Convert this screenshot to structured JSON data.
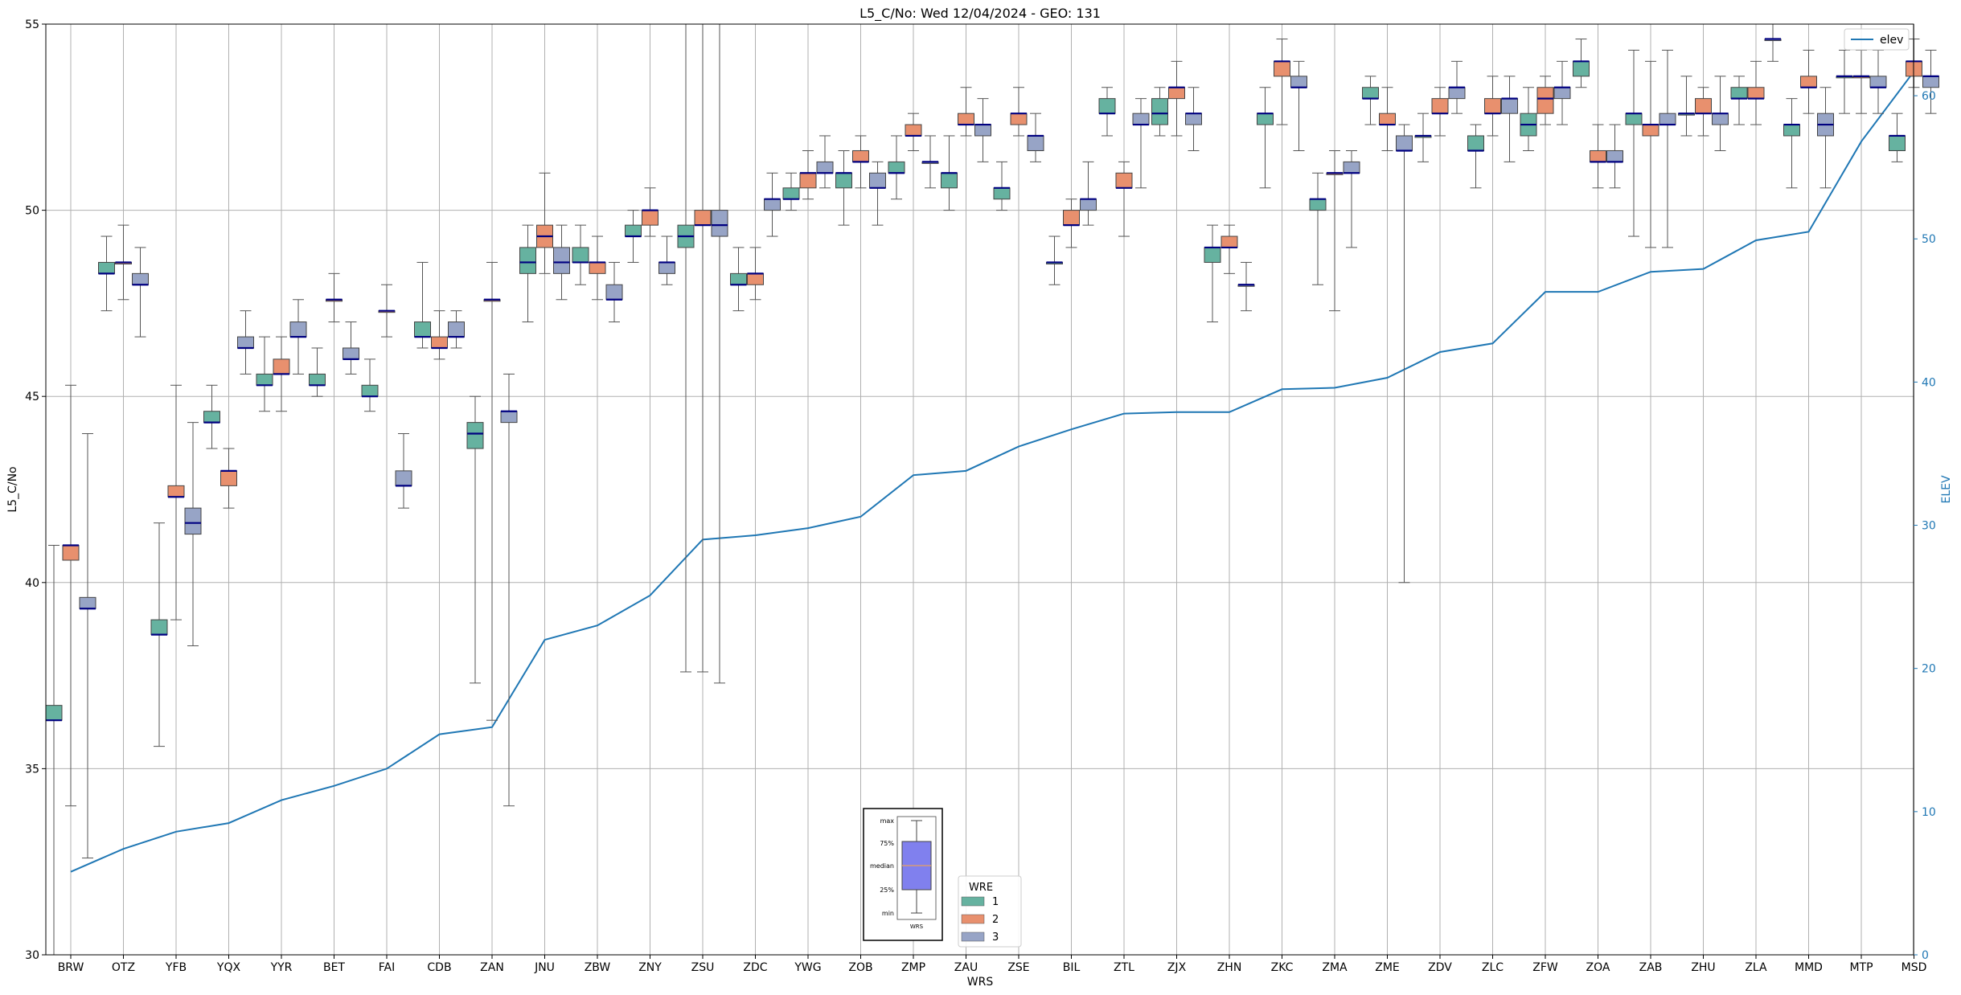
{
  "chart_data": {
    "type": "box",
    "title": "L5_C/No: Wed 12/04/2024 - GEO: 131",
    "xlabel": "WRS",
    "ylabel": "L5_C/No",
    "ylabel2": "ELEV",
    "ylim": [
      30,
      55
    ],
    "y2lim": [
      0,
      65
    ],
    "yticks": [
      "30",
      "35",
      "40",
      "45",
      "50",
      "55"
    ],
    "y2ticks": [
      "0",
      "10",
      "20",
      "30",
      "40",
      "50",
      "60"
    ],
    "grid": true,
    "categories": [
      "BRW",
      "OTZ",
      "YFB",
      "YQX",
      "YYR",
      "BET",
      "FAI",
      "CDB",
      "ZAN",
      "JNU",
      "ZBW",
      "ZNY",
      "ZSU",
      "ZDC",
      "YWG",
      "ZOB",
      "ZMP",
      "ZAU",
      "ZSE",
      "BIL",
      "ZTL",
      "ZJX",
      "ZHN",
      "ZKC",
      "ZMA",
      "ZME",
      "ZDV",
      "ZLC",
      "ZFW",
      "ZOA",
      "ZAB",
      "ZHU",
      "ZLA",
      "MMD",
      "MTP",
      "MSD"
    ],
    "elevation": [
      5.8,
      7.4,
      8.6,
      9.2,
      10.8,
      11.8,
      13.0,
      15.4,
      15.9,
      22.0,
      23.0,
      25.1,
      29.0,
      29.3,
      29.8,
      30.6,
      33.5,
      33.8,
      35.5,
      36.7,
      37.8,
      37.9,
      37.9,
      39.5,
      39.6,
      40.3,
      42.1,
      42.7,
      46.3,
      46.3,
      47.7,
      47.9,
      49.9,
      50.5,
      56.8,
      61.7
    ],
    "elev_legend": "elev",
    "legend_title": "WRE",
    "legend_entries": [
      "1",
      "2",
      "3"
    ],
    "wre_colors": [
      "#66b2a0",
      "#e8906e",
      "#97a4c6"
    ],
    "boxes": [
      {
        "wrs": "BRW",
        "wre": 1,
        "min": 30,
        "q1": 36.3,
        "median": 36.3,
        "q3": 36.7,
        "max": 41
      },
      {
        "wrs": "BRW",
        "wre": 2,
        "min": 34,
        "q1": 40.6,
        "median": 41,
        "q3": 41,
        "max": 45.3
      },
      {
        "wrs": "BRW",
        "wre": 3,
        "min": 32.6,
        "q1": 39.3,
        "median": 39.3,
        "q3": 39.6,
        "max": 44
      },
      {
        "wrs": "OTZ",
        "wre": 1,
        "min": 47.3,
        "q1": 48.3,
        "median": 48.3,
        "q3": 48.6,
        "max": 49.3
      },
      {
        "wrs": "OTZ",
        "wre": 2,
        "min": 47.6,
        "q1": 48.6,
        "median": 48.6,
        "q3": 48.6,
        "max": 49.6
      },
      {
        "wrs": "OTZ",
        "wre": 3,
        "min": 46.6,
        "q1": 48,
        "median": 48,
        "q3": 48.3,
        "max": 49
      },
      {
        "wrs": "YFB",
        "wre": 1,
        "min": 35.6,
        "q1": 38.6,
        "median": 38.6,
        "q3": 39,
        "max": 41.6
      },
      {
        "wrs": "YFB",
        "wre": 2,
        "min": 39,
        "q1": 42.3,
        "median": 42.3,
        "q3": 42.6,
        "max": 45.3
      },
      {
        "wrs": "YFB",
        "wre": 3,
        "min": 38.3,
        "q1": 41.3,
        "median": 41.6,
        "q3": 42,
        "max": 44.3
      },
      {
        "wrs": "YQX",
        "wre": 1,
        "min": 43.6,
        "q1": 44.3,
        "median": 44.3,
        "q3": 44.6,
        "max": 45.3
      },
      {
        "wrs": "YQX",
        "wre": 2,
        "min": 42,
        "q1": 42.6,
        "median": 43,
        "q3": 43,
        "max": 43.6
      },
      {
        "wrs": "YQX",
        "wre": 3,
        "min": 45.6,
        "q1": 46.3,
        "median": 46.3,
        "q3": 46.6,
        "max": 47.3
      },
      {
        "wrs": "YYR",
        "wre": 1,
        "min": 44.6,
        "q1": 45.3,
        "median": 45.3,
        "q3": 45.6,
        "max": 46.6
      },
      {
        "wrs": "YYR",
        "wre": 2,
        "min": 44.6,
        "q1": 45.6,
        "median": 45.6,
        "q3": 46,
        "max": 46.6
      },
      {
        "wrs": "YYR",
        "wre": 3,
        "min": 45.6,
        "q1": 46.6,
        "median": 46.6,
        "q3": 47,
        "max": 47.6
      },
      {
        "wrs": "BET",
        "wre": 1,
        "min": 45,
        "q1": 45.3,
        "median": 45.3,
        "q3": 45.6,
        "max": 46.3
      },
      {
        "wrs": "BET",
        "wre": 2,
        "min": 47,
        "q1": 47.6,
        "median": 47.6,
        "q3": 47.6,
        "max": 48.3
      },
      {
        "wrs": "BET",
        "wre": 3,
        "min": 45.6,
        "q1": 46,
        "median": 46,
        "q3": 46.3,
        "max": 47
      },
      {
        "wrs": "FAI",
        "wre": 1,
        "min": 44.6,
        "q1": 45,
        "median": 45,
        "q3": 45.3,
        "max": 46
      },
      {
        "wrs": "FAI",
        "wre": 2,
        "min": 46.6,
        "q1": 47.3,
        "median": 47.3,
        "q3": 47.3,
        "max": 48
      },
      {
        "wrs": "FAI",
        "wre": 3,
        "min": 42,
        "q1": 42.6,
        "median": 42.6,
        "q3": 43,
        "max": 44
      },
      {
        "wrs": "CDB",
        "wre": 1,
        "min": 46.3,
        "q1": 46.6,
        "median": 46.6,
        "q3": 47,
        "max": 48.6
      },
      {
        "wrs": "CDB",
        "wre": 2,
        "min": 46,
        "q1": 46.3,
        "median": 46.3,
        "q3": 46.6,
        "max": 47.3
      },
      {
        "wrs": "CDB",
        "wre": 3,
        "min": 46.3,
        "q1": 46.6,
        "median": 46.6,
        "q3": 47,
        "max": 47.3
      },
      {
        "wrs": "ZAN",
        "wre": 1,
        "min": 37.3,
        "q1": 43.6,
        "median": 44,
        "q3": 44.3,
        "max": 45
      },
      {
        "wrs": "ZAN",
        "wre": 2,
        "min": 36.3,
        "q1": 47.6,
        "median": 47.6,
        "q3": 47.6,
        "max": 48.6
      },
      {
        "wrs": "ZAN",
        "wre": 3,
        "min": 34,
        "q1": 44.3,
        "median": 44.6,
        "q3": 44.6,
        "max": 45.6
      },
      {
        "wrs": "JNU",
        "wre": 1,
        "min": 47,
        "q1": 48.3,
        "median": 48.6,
        "q3": 49,
        "max": 49.6
      },
      {
        "wrs": "JNU",
        "wre": 2,
        "min": 48.3,
        "q1": 49,
        "median": 49.3,
        "q3": 49.6,
        "max": 51
      },
      {
        "wrs": "JNU",
        "wre": 3,
        "min": 47.6,
        "q1": 48.3,
        "median": 48.6,
        "q3": 49,
        "max": 49.6
      },
      {
        "wrs": "ZBW",
        "wre": 1,
        "min": 48,
        "q1": 48.6,
        "median": 48.6,
        "q3": 49,
        "max": 49.6
      },
      {
        "wrs": "ZBW",
        "wre": 2,
        "min": 47.6,
        "q1": 48.3,
        "median": 48.6,
        "q3": 48.6,
        "max": 49.3
      },
      {
        "wrs": "ZBW",
        "wre": 3,
        "min": 47,
        "q1": 47.6,
        "median": 47.6,
        "q3": 48,
        "max": 48.6
      },
      {
        "wrs": "ZNY",
        "wre": 1,
        "min": 48.6,
        "q1": 49.3,
        "median": 49.3,
        "q3": 49.6,
        "max": 50
      },
      {
        "wrs": "ZNY",
        "wre": 2,
        "min": 49.3,
        "q1": 49.6,
        "median": 50,
        "q3": 50,
        "max": 50.6
      },
      {
        "wrs": "ZNY",
        "wre": 3,
        "min": 48,
        "q1": 48.3,
        "median": 48.6,
        "q3": 48.6,
        "max": 49.3
      },
      {
        "wrs": "ZSU",
        "wre": 1,
        "min": 37.6,
        "q1": 49,
        "median": 49.3,
        "q3": 49.6,
        "max": 55
      },
      {
        "wrs": "ZSU",
        "wre": 2,
        "min": 37.6,
        "q1": 49.6,
        "median": 49.6,
        "q3": 50,
        "max": 55
      },
      {
        "wrs": "ZSU",
        "wre": 3,
        "min": 37.3,
        "q1": 49.3,
        "median": 49.6,
        "q3": 50,
        "max": 55
      },
      {
        "wrs": "ZDC",
        "wre": 1,
        "min": 47.3,
        "q1": 48,
        "median": 48,
        "q3": 48.3,
        "max": 49
      },
      {
        "wrs": "ZDC",
        "wre": 2,
        "min": 47.6,
        "q1": 48,
        "median": 48.3,
        "q3": 48.3,
        "max": 49
      },
      {
        "wrs": "ZDC",
        "wre": 3,
        "min": 49.3,
        "q1": 50,
        "median": 50.3,
        "q3": 50.3,
        "max": 51
      },
      {
        "wrs": "YWG",
        "wre": 1,
        "min": 50,
        "q1": 50.3,
        "median": 50.3,
        "q3": 50.6,
        "max": 51
      },
      {
        "wrs": "YWG",
        "wre": 2,
        "min": 50.3,
        "q1": 50.6,
        "median": 51,
        "q3": 51,
        "max": 51.6
      },
      {
        "wrs": "YWG",
        "wre": 3,
        "min": 50.6,
        "q1": 51,
        "median": 51,
        "q3": 51.3,
        "max": 52
      },
      {
        "wrs": "ZOB",
        "wre": 1,
        "min": 49.6,
        "q1": 50.6,
        "median": 51,
        "q3": 51,
        "max": 51.6
      },
      {
        "wrs": "ZOB",
        "wre": 2,
        "min": 50.6,
        "q1": 51.3,
        "median": 51.3,
        "q3": 51.6,
        "max": 52
      },
      {
        "wrs": "ZOB",
        "wre": 3,
        "min": 49.6,
        "q1": 50.6,
        "median": 50.6,
        "q3": 51,
        "max": 51.3
      },
      {
        "wrs": "ZMP",
        "wre": 1,
        "min": 50.3,
        "q1": 51,
        "median": 51,
        "q3": 51.3,
        "max": 52
      },
      {
        "wrs": "ZMP",
        "wre": 2,
        "min": 51.6,
        "q1": 52,
        "median": 52,
        "q3": 52.3,
        "max": 52.6
      },
      {
        "wrs": "ZMP",
        "wre": 3,
        "min": 50.6,
        "q1": 51.3,
        "median": 51.3,
        "q3": 51.3,
        "max": 52
      },
      {
        "wrs": "ZAU",
        "wre": 1,
        "min": 50,
        "q1": 50.6,
        "median": 51,
        "q3": 51,
        "max": 52
      },
      {
        "wrs": "ZAU",
        "wre": 2,
        "min": 52,
        "q1": 52.3,
        "median": 52.3,
        "q3": 52.6,
        "max": 53.3
      },
      {
        "wrs": "ZAU",
        "wre": 3,
        "min": 51.3,
        "q1": 52,
        "median": 52.3,
        "q3": 52.3,
        "max": 53
      },
      {
        "wrs": "ZSE",
        "wre": 1,
        "min": 50,
        "q1": 50.3,
        "median": 50.6,
        "q3": 50.6,
        "max": 51.3
      },
      {
        "wrs": "ZSE",
        "wre": 2,
        "min": 52,
        "q1": 52.3,
        "median": 52.6,
        "q3": 52.6,
        "max": 53.3
      },
      {
        "wrs": "ZSE",
        "wre": 3,
        "min": 51.3,
        "q1": 51.6,
        "median": 52,
        "q3": 52,
        "max": 52.6
      },
      {
        "wrs": "BIL",
        "wre": 1,
        "min": 48,
        "q1": 48.6,
        "median": 48.6,
        "q3": 48.6,
        "max": 49.3
      },
      {
        "wrs": "BIL",
        "wre": 2,
        "min": 49,
        "q1": 49.6,
        "median": 49.6,
        "q3": 50,
        "max": 50.3
      },
      {
        "wrs": "BIL",
        "wre": 3,
        "min": 49.6,
        "q1": 50,
        "median": 50.3,
        "q3": 50.3,
        "max": 51.3
      },
      {
        "wrs": "ZTL",
        "wre": 1,
        "min": 52,
        "q1": 52.6,
        "median": 52.6,
        "q3": 53,
        "max": 53.3
      },
      {
        "wrs": "ZTL",
        "wre": 2,
        "min": 49.3,
        "q1": 50.6,
        "median": 50.6,
        "q3": 51,
        "max": 51.3
      },
      {
        "wrs": "ZTL",
        "wre": 3,
        "min": 50.6,
        "q1": 52.3,
        "median": 52.3,
        "q3": 52.6,
        "max": 53
      },
      {
        "wrs": "ZJX",
        "wre": 1,
        "min": 52,
        "q1": 52.3,
        "median": 52.6,
        "q3": 53,
        "max": 53.3
      },
      {
        "wrs": "ZJX",
        "wre": 2,
        "min": 52,
        "q1": 53,
        "median": 53.3,
        "q3": 53.3,
        "max": 54
      },
      {
        "wrs": "ZJX",
        "wre": 3,
        "min": 51.6,
        "q1": 52.3,
        "median": 52.6,
        "q3": 52.6,
        "max": 53.3
      },
      {
        "wrs": "ZHN",
        "wre": 1,
        "min": 47,
        "q1": 48.6,
        "median": 49,
        "q3": 49,
        "max": 49.6
      },
      {
        "wrs": "ZHN",
        "wre": 2,
        "min": 48.3,
        "q1": 49,
        "median": 49,
        "q3": 49.3,
        "max": 49.6
      },
      {
        "wrs": "ZHN",
        "wre": 3,
        "min": 47.3,
        "q1": 48,
        "median": 48,
        "q3": 48,
        "max": 48.6
      },
      {
        "wrs": "ZKC",
        "wre": 1,
        "min": 50.6,
        "q1": 52.3,
        "median": 52.6,
        "q3": 52.6,
        "max": 53.3
      },
      {
        "wrs": "ZKC",
        "wre": 2,
        "min": 52.3,
        "q1": 53.6,
        "median": 54,
        "q3": 54,
        "max": 54.6
      },
      {
        "wrs": "ZKC",
        "wre": 3,
        "min": 51.6,
        "q1": 53.3,
        "median": 53.3,
        "q3": 53.6,
        "max": 54
      },
      {
        "wrs": "ZMA",
        "wre": 1,
        "min": 48,
        "q1": 50,
        "median": 50.3,
        "q3": 50.3,
        "max": 51
      },
      {
        "wrs": "ZMA",
        "wre": 2,
        "min": 47.3,
        "q1": 51,
        "median": 51,
        "q3": 51,
        "max": 51.6
      },
      {
        "wrs": "ZMA",
        "wre": 3,
        "min": 49,
        "q1": 51,
        "median": 51,
        "q3": 51.3,
        "max": 51.6
      },
      {
        "wrs": "ZME",
        "wre": 1,
        "min": 52.3,
        "q1": 53,
        "median": 53,
        "q3": 53.3,
        "max": 53.6
      },
      {
        "wrs": "ZME",
        "wre": 2,
        "min": 51.6,
        "q1": 52.3,
        "median": 52.3,
        "q3": 52.6,
        "max": 53.3
      },
      {
        "wrs": "ZME",
        "wre": 3,
        "min": 40,
        "q1": 51.6,
        "median": 51.6,
        "q3": 52,
        "max": 52.3
      },
      {
        "wrs": "ZDV",
        "wre": 1,
        "min": 51.3,
        "q1": 52,
        "median": 52,
        "q3": 52,
        "max": 52.6
      },
      {
        "wrs": "ZDV",
        "wre": 2,
        "min": 52,
        "q1": 52.6,
        "median": 52.6,
        "q3": 53,
        "max": 53.3
      },
      {
        "wrs": "ZDV",
        "wre": 3,
        "min": 52.6,
        "q1": 53,
        "median": 53.3,
        "q3": 53.3,
        "max": 54
      },
      {
        "wrs": "ZLC",
        "wre": 1,
        "min": 50.6,
        "q1": 51.6,
        "median": 51.6,
        "q3": 52,
        "max": 52.3
      },
      {
        "wrs": "ZLC",
        "wre": 2,
        "min": 52,
        "q1": 52.6,
        "median": 52.6,
        "q3": 53,
        "max": 53.6
      },
      {
        "wrs": "ZLC",
        "wre": 3,
        "min": 51.3,
        "q1": 52.6,
        "median": 53,
        "q3": 53,
        "max": 53.6
      },
      {
        "wrs": "ZFW",
        "wre": 1,
        "min": 51.6,
        "q1": 52,
        "median": 52.3,
        "q3": 52.6,
        "max": 53.3
      },
      {
        "wrs": "ZFW",
        "wre": 2,
        "min": 52.3,
        "q1": 52.6,
        "median": 53,
        "q3": 53.3,
        "max": 53.6
      },
      {
        "wrs": "ZFW",
        "wre": 3,
        "min": 52.3,
        "q1": 53,
        "median": 53.3,
        "q3": 53.3,
        "max": 54
      },
      {
        "wrs": "ZOA",
        "wre": 1,
        "min": 53.3,
        "q1": 53.6,
        "median": 54,
        "q3": 54,
        "max": 54.6
      },
      {
        "wrs": "ZOA",
        "wre": 2,
        "min": 50.6,
        "q1": 51.3,
        "median": 51.3,
        "q3": 51.6,
        "max": 52.3
      },
      {
        "wrs": "ZOA",
        "wre": 3,
        "min": 50.6,
        "q1": 51.3,
        "median": 51.3,
        "q3": 51.6,
        "max": 52.3
      },
      {
        "wrs": "ZAB",
        "wre": 1,
        "min": 49.3,
        "q1": 52.3,
        "median": 52.6,
        "q3": 52.6,
        "max": 54.3
      },
      {
        "wrs": "ZAB",
        "wre": 2,
        "min": 49,
        "q1": 52,
        "median": 52.3,
        "q3": 52.3,
        "max": 54
      },
      {
        "wrs": "ZAB",
        "wre": 3,
        "min": 49,
        "q1": 52.3,
        "median": 52.3,
        "q3": 52.6,
        "max": 54.3
      },
      {
        "wrs": "ZHU",
        "wre": 1,
        "min": 52,
        "q1": 52.6,
        "median": 52.6,
        "q3": 52.6,
        "max": 53.6
      },
      {
        "wrs": "ZHU",
        "wre": 2,
        "min": 52,
        "q1": 52.6,
        "median": 52.6,
        "q3": 53,
        "max": 53.3
      },
      {
        "wrs": "ZHU",
        "wre": 3,
        "min": 51.6,
        "q1": 52.3,
        "median": 52.6,
        "q3": 52.6,
        "max": 53.6
      },
      {
        "wrs": "ZLA",
        "wre": 1,
        "min": 52.3,
        "q1": 53,
        "median": 53,
        "q3": 53.3,
        "max": 53.6
      },
      {
        "wrs": "ZLA",
        "wre": 2,
        "min": 52.3,
        "q1": 53,
        "median": 53,
        "q3": 53.3,
        "max": 54
      },
      {
        "wrs": "ZLA",
        "wre": 3,
        "min": 54,
        "q1": 54.6,
        "median": 54.6,
        "q3": 54.6,
        "max": 55
      },
      {
        "wrs": "MMD",
        "wre": 1,
        "min": 50.6,
        "q1": 52,
        "median": 52.3,
        "q3": 52.3,
        "max": 53
      },
      {
        "wrs": "MMD",
        "wre": 2,
        "min": 52.6,
        "q1": 53.3,
        "median": 53.3,
        "q3": 53.6,
        "max": 54.3
      },
      {
        "wrs": "MMD",
        "wre": 3,
        "min": 50.6,
        "q1": 52,
        "median": 52.3,
        "q3": 52.6,
        "max": 53.3
      },
      {
        "wrs": "MTP",
        "wre": 1,
        "min": 52.6,
        "q1": 53.6,
        "median": 53.6,
        "q3": 53.6,
        "max": 54.3
      },
      {
        "wrs": "MTP",
        "wre": 2,
        "min": 52.6,
        "q1": 53.6,
        "median": 53.6,
        "q3": 53.6,
        "max": 54.3
      },
      {
        "wrs": "MTP",
        "wre": 3,
        "min": 52.6,
        "q1": 53.3,
        "median": 53.3,
        "q3": 53.6,
        "max": 54.3
      },
      {
        "wrs": "MSD",
        "wre": 1,
        "min": 51.3,
        "q1": 51.6,
        "median": 52,
        "q3": 52,
        "max": 52.6
      },
      {
        "wrs": "MSD",
        "wre": 2,
        "min": 53.3,
        "q1": 53.6,
        "median": 54,
        "q3": 54,
        "max": 54.6
      },
      {
        "wrs": "MSD",
        "wre": 3,
        "min": 52.6,
        "q1": 53.3,
        "median": 53.6,
        "q3": 53.6,
        "max": 54.3
      }
    ],
    "inset_legend": {
      "labels": [
        "max",
        "75%",
        "median",
        "25%",
        "min"
      ],
      "xlabel": "WRS"
    }
  }
}
